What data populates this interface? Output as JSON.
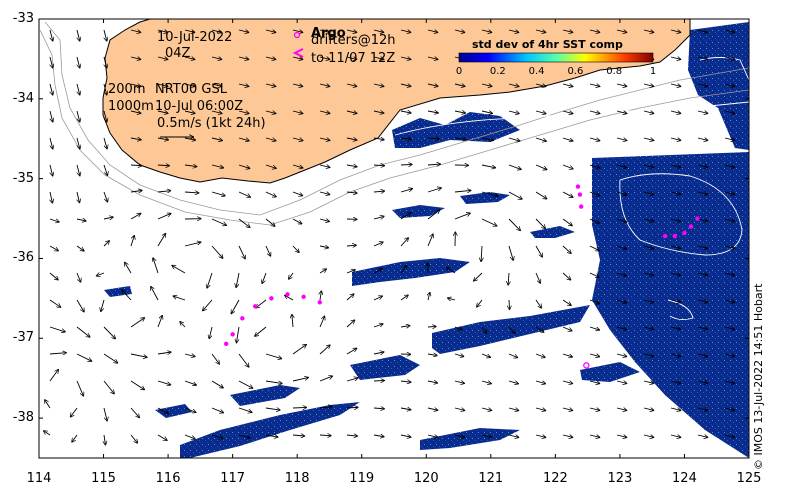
{
  "header": {
    "date": "10-Jul-2022",
    "time": "04Z",
    "contour_200": "200m",
    "contour_1000": "1000m",
    "model": "NRT00 GSL",
    "model_time": "10-Jul 06:00Z",
    "scale_label": "0.5m/s (1kt 24h)"
  },
  "legend": {
    "argo_label": "Argo",
    "drifters_label": "drifters@12h",
    "drifters_until": "to 11/07 12Z",
    "argo_color": "#ff00ff"
  },
  "colorbar": {
    "title": "std dev of 4hr SST comp",
    "ticks": [
      "0",
      "0.2",
      "0.4",
      "0.6",
      "0.8",
      "1"
    ]
  },
  "axes": {
    "x_ticks": [
      "114",
      "115",
      "116",
      "117",
      "118",
      "119",
      "120",
      "121",
      "122",
      "123",
      "124",
      "125"
    ],
    "y_ticks": [
      "-33",
      "-34",
      "-35",
      "-36",
      "-37",
      "-38"
    ],
    "lon_range": [
      114,
      125
    ],
    "lat_range": [
      -38.5,
      -33
    ]
  },
  "credit": "© IMOS 13-Jul-2022 14:51 Hobart",
  "colors": {
    "land": "#fdc895",
    "ocean": "#ffffff",
    "sst_patch": "#0a2a8a"
  },
  "argo_floats": [
    {
      "lon": 122.48,
      "lat": -37.34
    }
  ],
  "drifter_tracks": [
    [
      [
        116.9,
        -37.07
      ],
      [
        117.0,
        -36.95
      ],
      [
        117.15,
        -36.75
      ],
      [
        117.35,
        -36.6
      ],
      [
        117.6,
        -36.5
      ],
      [
        117.85,
        -36.45
      ],
      [
        118.1,
        -36.48
      ],
      [
        118.35,
        -36.55
      ]
    ],
    [
      [
        123.7,
        -35.72
      ],
      [
        123.85,
        -35.72
      ],
      [
        124.0,
        -35.68
      ],
      [
        124.1,
        -35.6
      ],
      [
        124.2,
        -35.5
      ]
    ],
    [
      [
        122.35,
        -35.1
      ],
      [
        122.38,
        -35.2
      ],
      [
        122.4,
        -35.35
      ]
    ]
  ]
}
